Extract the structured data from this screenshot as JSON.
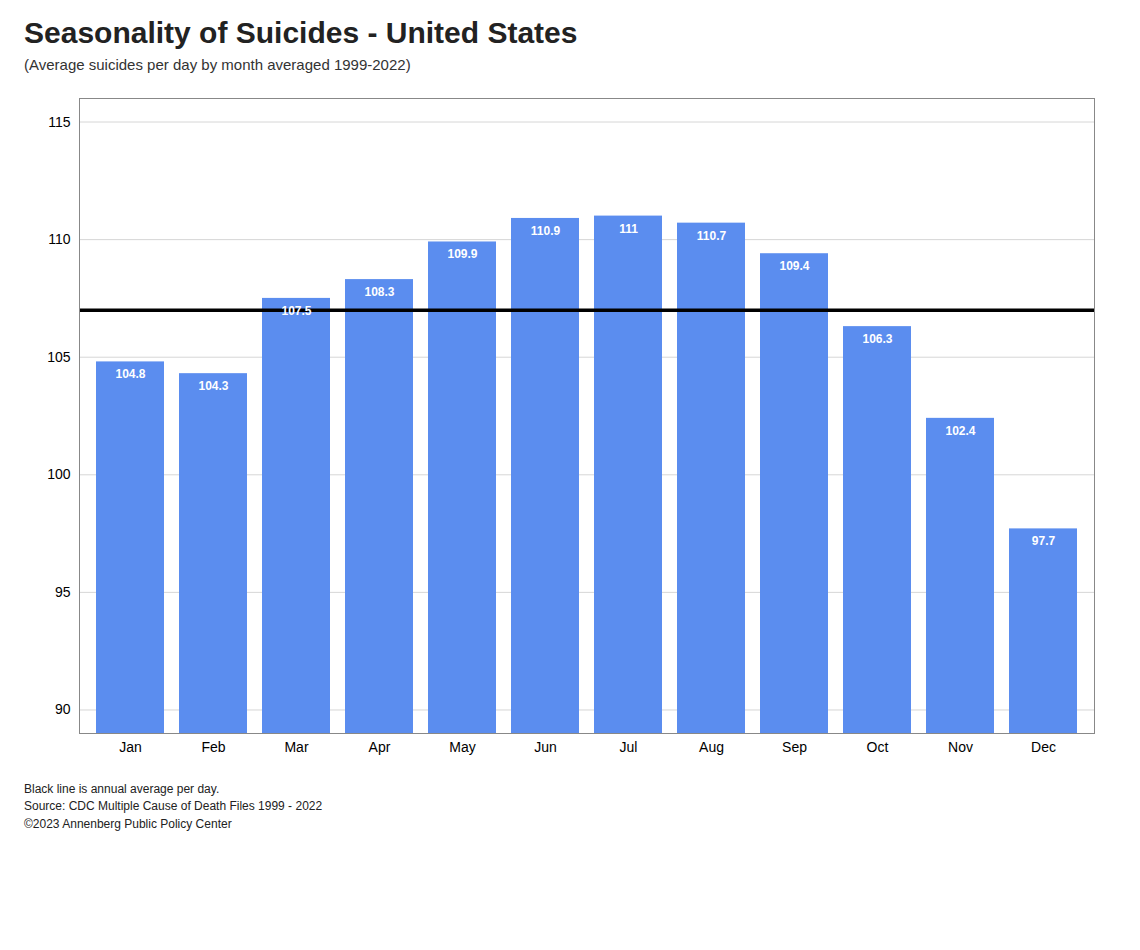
{
  "chart_data": {
    "type": "bar",
    "title": "Seasonality of Suicides - United States",
    "subtitle": "(Average suicides per day by month averaged 1999-2022)",
    "categories": [
      "Jan",
      "Feb",
      "Mar",
      "Apr",
      "May",
      "Jun",
      "Jul",
      "Aug",
      "Sep",
      "Oct",
      "Nov",
      "Dec"
    ],
    "values": [
      104.8,
      104.3,
      107.5,
      108.3,
      109.9,
      110.9,
      111,
      110.7,
      109.4,
      106.3,
      102.4,
      97.7
    ],
    "color": "#5b8def",
    "annual_average": 107,
    "ylim": [
      89,
      116
    ],
    "yticks": [
      90,
      95,
      100,
      105,
      110,
      115
    ],
    "grid": true,
    "data_labels": true,
    "annotations": [
      "Black line is annual average per day.",
      "Source:  CDC Multiple Cause of Death Files 1999 - 2022",
      "©2023 Annenberg Public Policy Center"
    ]
  }
}
